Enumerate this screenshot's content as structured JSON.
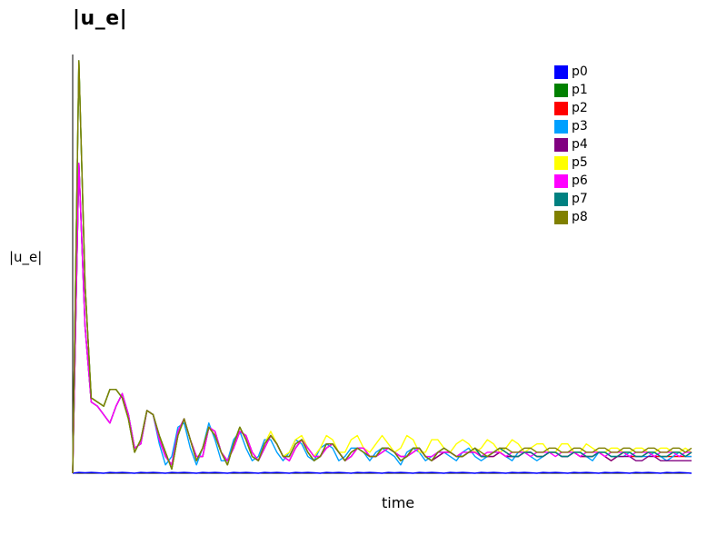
{
  "chart_data": {
    "type": "line",
    "title": "|u_e|",
    "xlabel": "time",
    "ylabel": "|u_e|",
    "xlim": [
      0,
      100
    ],
    "ylim": [
      0,
      1.0
    ],
    "grid": false,
    "legend_position": "top-right",
    "x": [
      0,
      1,
      2,
      3,
      4,
      5,
      6,
      7,
      8,
      9,
      10,
      11,
      12,
      13,
      14,
      15,
      16,
      17,
      18,
      19,
      20,
      21,
      22,
      23,
      24,
      25,
      26,
      27,
      28,
      29,
      30,
      31,
      32,
      33,
      34,
      35,
      36,
      37,
      38,
      39,
      40,
      41,
      42,
      43,
      44,
      45,
      46,
      47,
      48,
      49,
      50,
      51,
      52,
      53,
      54,
      55,
      56,
      57,
      58,
      59,
      60,
      61,
      62,
      63,
      64,
      65,
      66,
      67,
      68,
      69,
      70,
      71,
      72,
      73,
      74,
      75,
      76,
      77,
      78,
      79,
      80,
      81,
      82,
      83,
      84,
      85,
      86,
      87,
      88,
      89,
      90,
      91,
      92,
      93,
      94,
      95,
      96,
      97,
      98,
      99,
      100
    ],
    "series": [
      {
        "name": "p0",
        "color": "#0000ff",
        "values": [
          0.0,
          0.002,
          0.001,
          0.002,
          0.001,
          0.0,
          0.002,
          0.001,
          0.002,
          0.001,
          0.0,
          0.002,
          0.001,
          0.002,
          0.001,
          0.0,
          0.002,
          0.001,
          0.002,
          0.001,
          0.0,
          0.002,
          0.001,
          0.002,
          0.001,
          0.0,
          0.002,
          0.001,
          0.002,
          0.001,
          0.0,
          0.002,
          0.001,
          0.002,
          0.001,
          0.0,
          0.002,
          0.001,
          0.002,
          0.001,
          0.0,
          0.002,
          0.001,
          0.002,
          0.001,
          0.0,
          0.002,
          0.001,
          0.002,
          0.001,
          0.0,
          0.002,
          0.001,
          0.002,
          0.001,
          0.0,
          0.002,
          0.001,
          0.002,
          0.001,
          0.0,
          0.002,
          0.001,
          0.002,
          0.001,
          0.0,
          0.002,
          0.001,
          0.002,
          0.001,
          0.0,
          0.002,
          0.001,
          0.002,
          0.001,
          0.0,
          0.002,
          0.001,
          0.002,
          0.001,
          0.0,
          0.002,
          0.001,
          0.002,
          0.001,
          0.0,
          0.002,
          0.001,
          0.002,
          0.001,
          0.0,
          0.002,
          0.001,
          0.002,
          0.001,
          0.0,
          0.002,
          0.001,
          0.002,
          0.001,
          0.0
        ]
      },
      {
        "name": "p1",
        "color": "#008000",
        "values": [
          0.0,
          0.985,
          0.45,
          0.18,
          0.17,
          0.16,
          0.2,
          0.2,
          0.18,
          0.13,
          0.05,
          0.08,
          0.15,
          0.14,
          0.09,
          0.05,
          0.01,
          0.09,
          0.13,
          0.08,
          0.03,
          0.06,
          0.11,
          0.09,
          0.05,
          0.02,
          0.07,
          0.11,
          0.08,
          0.04,
          0.03,
          0.07,
          0.09,
          0.07,
          0.04,
          0.04,
          0.07,
          0.08,
          0.05,
          0.03,
          0.04,
          0.07,
          0.07,
          0.05,
          0.03,
          0.05,
          0.06,
          0.05,
          0.04,
          0.04,
          0.06,
          0.06,
          0.05,
          0.03,
          0.04,
          0.06,
          0.06,
          0.04,
          0.03,
          0.05,
          0.06,
          0.05,
          0.04,
          0.04,
          0.05,
          0.06,
          0.04,
          0.04,
          0.05,
          0.06,
          0.05,
          0.04,
          0.04,
          0.05,
          0.05,
          0.04,
          0.04,
          0.05,
          0.05,
          0.04,
          0.04,
          0.05,
          0.05,
          0.04,
          0.04,
          0.05,
          0.05,
          0.04,
          0.04,
          0.05,
          0.05,
          0.04,
          0.04,
          0.05,
          0.05,
          0.04,
          0.04,
          0.05,
          0.05,
          0.04,
          0.05
        ]
      },
      {
        "name": "p2",
        "color": "#ff0000",
        "values": [
          0.0,
          0.74,
          0.35,
          0.17,
          0.16,
          0.14,
          0.12,
          0.16,
          0.19,
          0.14,
          0.06,
          0.07,
          0.15,
          0.14,
          0.08,
          0.04,
          0.02,
          0.1,
          0.13,
          0.08,
          0.04,
          0.04,
          0.11,
          0.1,
          0.05,
          0.03,
          0.06,
          0.1,
          0.09,
          0.05,
          0.03,
          0.06,
          0.09,
          0.07,
          0.04,
          0.03,
          0.06,
          0.08,
          0.06,
          0.04,
          0.04,
          0.06,
          0.07,
          0.05,
          0.03,
          0.04,
          0.06,
          0.06,
          0.04,
          0.04,
          0.05,
          0.06,
          0.05,
          0.04,
          0.04,
          0.05,
          0.06,
          0.04,
          0.03,
          0.04,
          0.05,
          0.05,
          0.04,
          0.04,
          0.05,
          0.05,
          0.04,
          0.04,
          0.04,
          0.05,
          0.04,
          0.04,
          0.04,
          0.05,
          0.05,
          0.04,
          0.04,
          0.05,
          0.05,
          0.04,
          0.04,
          0.05,
          0.04,
          0.04,
          0.04,
          0.05,
          0.04,
          0.03,
          0.04,
          0.05,
          0.04,
          0.04,
          0.04,
          0.05,
          0.04,
          0.04,
          0.04,
          0.04,
          0.04,
          0.04,
          0.04
        ]
      },
      {
        "name": "p3",
        "color": "#00a0ff",
        "values": [
          0.0,
          0.74,
          0.35,
          0.17,
          0.16,
          0.14,
          0.12,
          0.16,
          0.19,
          0.14,
          0.06,
          0.07,
          0.15,
          0.14,
          0.07,
          0.02,
          0.04,
          0.11,
          0.12,
          0.06,
          0.02,
          0.06,
          0.12,
          0.08,
          0.03,
          0.03,
          0.08,
          0.1,
          0.06,
          0.03,
          0.04,
          0.08,
          0.08,
          0.05,
          0.03,
          0.05,
          0.08,
          0.07,
          0.04,
          0.03,
          0.06,
          0.07,
          0.06,
          0.03,
          0.04,
          0.06,
          0.06,
          0.05,
          0.03,
          0.05,
          0.06,
          0.05,
          0.04,
          0.02,
          0.05,
          0.06,
          0.05,
          0.03,
          0.04,
          0.05,
          0.05,
          0.04,
          0.03,
          0.05,
          0.06,
          0.04,
          0.03,
          0.04,
          0.05,
          0.05,
          0.04,
          0.03,
          0.05,
          0.05,
          0.04,
          0.03,
          0.04,
          0.05,
          0.05,
          0.04,
          0.04,
          0.05,
          0.05,
          0.04,
          0.03,
          0.05,
          0.05,
          0.04,
          0.04,
          0.04,
          0.05,
          0.04,
          0.04,
          0.04,
          0.05,
          0.04,
          0.03,
          0.04,
          0.05,
          0.04,
          0.04
        ]
      },
      {
        "name": "p4",
        "color": "#800080",
        "values": [
          0.0,
          0.74,
          0.35,
          0.17,
          0.16,
          0.14,
          0.12,
          0.16,
          0.19,
          0.14,
          0.06,
          0.07,
          0.15,
          0.14,
          0.08,
          0.04,
          0.02,
          0.1,
          0.13,
          0.08,
          0.04,
          0.04,
          0.11,
          0.1,
          0.05,
          0.03,
          0.06,
          0.1,
          0.09,
          0.05,
          0.03,
          0.06,
          0.09,
          0.07,
          0.04,
          0.03,
          0.06,
          0.08,
          0.06,
          0.04,
          0.04,
          0.06,
          0.07,
          0.05,
          0.03,
          0.04,
          0.06,
          0.06,
          0.04,
          0.04,
          0.05,
          0.06,
          0.05,
          0.04,
          0.04,
          0.05,
          0.06,
          0.04,
          0.03,
          0.04,
          0.05,
          0.05,
          0.04,
          0.04,
          0.05,
          0.05,
          0.04,
          0.04,
          0.04,
          0.05,
          0.04,
          0.04,
          0.04,
          0.05,
          0.05,
          0.04,
          0.04,
          0.05,
          0.05,
          0.04,
          0.04,
          0.05,
          0.04,
          0.04,
          0.04,
          0.05,
          0.04,
          0.03,
          0.04,
          0.04,
          0.04,
          0.03,
          0.03,
          0.04,
          0.04,
          0.03,
          0.03,
          0.03,
          0.03,
          0.03,
          0.03
        ]
      },
      {
        "name": "p5",
        "color": "#ffff00",
        "values": [
          0.0,
          0.985,
          0.45,
          0.18,
          0.17,
          0.16,
          0.2,
          0.2,
          0.18,
          0.13,
          0.05,
          0.08,
          0.15,
          0.14,
          0.09,
          0.05,
          0.01,
          0.09,
          0.13,
          0.08,
          0.03,
          0.06,
          0.11,
          0.09,
          0.05,
          0.02,
          0.07,
          0.11,
          0.08,
          0.04,
          0.03,
          0.07,
          0.1,
          0.07,
          0.04,
          0.05,
          0.08,
          0.09,
          0.06,
          0.04,
          0.06,
          0.09,
          0.08,
          0.05,
          0.05,
          0.08,
          0.09,
          0.06,
          0.05,
          0.07,
          0.09,
          0.07,
          0.05,
          0.06,
          0.09,
          0.08,
          0.05,
          0.05,
          0.08,
          0.08,
          0.06,
          0.05,
          0.07,
          0.08,
          0.07,
          0.05,
          0.06,
          0.08,
          0.07,
          0.05,
          0.06,
          0.08,
          0.07,
          0.05,
          0.06,
          0.07,
          0.07,
          0.05,
          0.05,
          0.07,
          0.07,
          0.05,
          0.05,
          0.07,
          0.06,
          0.05,
          0.05,
          0.06,
          0.06,
          0.05,
          0.05,
          0.06,
          0.06,
          0.05,
          0.05,
          0.06,
          0.06,
          0.05,
          0.05,
          0.06,
          0.05
        ]
      },
      {
        "name": "p6",
        "color": "#ff00ff",
        "values": [
          0.0,
          0.74,
          0.35,
          0.17,
          0.16,
          0.14,
          0.12,
          0.16,
          0.19,
          0.14,
          0.06,
          0.07,
          0.15,
          0.14,
          0.08,
          0.04,
          0.02,
          0.1,
          0.13,
          0.08,
          0.04,
          0.04,
          0.11,
          0.1,
          0.05,
          0.03,
          0.06,
          0.1,
          0.09,
          0.05,
          0.03,
          0.06,
          0.09,
          0.07,
          0.04,
          0.03,
          0.06,
          0.08,
          0.06,
          0.04,
          0.04,
          0.06,
          0.07,
          0.05,
          0.03,
          0.04,
          0.06,
          0.06,
          0.04,
          0.04,
          0.05,
          0.06,
          0.05,
          0.04,
          0.04,
          0.05,
          0.06,
          0.04,
          0.04,
          0.05,
          0.05,
          0.05,
          0.04,
          0.05,
          0.05,
          0.05,
          0.04,
          0.05,
          0.05,
          0.05,
          0.04,
          0.05,
          0.05,
          0.05,
          0.04,
          0.05,
          0.05,
          0.05,
          0.04,
          0.05,
          0.05,
          0.05,
          0.04,
          0.05,
          0.05,
          0.05,
          0.04,
          0.05,
          0.05,
          0.05,
          0.04,
          0.05,
          0.05,
          0.05,
          0.04,
          0.05,
          0.05,
          0.05,
          0.04,
          0.05,
          0.05
        ]
      },
      {
        "name": "p7",
        "color": "#008080",
        "values": [
          0.0,
          0.985,
          0.45,
          0.18,
          0.17,
          0.16,
          0.2,
          0.2,
          0.18,
          0.13,
          0.05,
          0.08,
          0.15,
          0.14,
          0.09,
          0.05,
          0.01,
          0.09,
          0.13,
          0.08,
          0.03,
          0.06,
          0.11,
          0.09,
          0.05,
          0.02,
          0.07,
          0.11,
          0.08,
          0.04,
          0.03,
          0.07,
          0.09,
          0.07,
          0.04,
          0.04,
          0.07,
          0.08,
          0.05,
          0.03,
          0.04,
          0.07,
          0.07,
          0.05,
          0.03,
          0.05,
          0.06,
          0.05,
          0.04,
          0.04,
          0.06,
          0.06,
          0.05,
          0.03,
          0.04,
          0.06,
          0.06,
          0.04,
          0.03,
          0.05,
          0.06,
          0.05,
          0.04,
          0.04,
          0.05,
          0.06,
          0.04,
          0.04,
          0.05,
          0.06,
          0.05,
          0.04,
          0.04,
          0.05,
          0.05,
          0.04,
          0.04,
          0.05,
          0.05,
          0.04,
          0.04,
          0.05,
          0.05,
          0.04,
          0.04,
          0.05,
          0.05,
          0.04,
          0.04,
          0.05,
          0.05,
          0.04,
          0.04,
          0.05,
          0.05,
          0.04,
          0.04,
          0.05,
          0.05,
          0.04,
          0.05
        ]
      },
      {
        "name": "p8",
        "color": "#808000",
        "values": [
          0.0,
          0.985,
          0.45,
          0.18,
          0.17,
          0.16,
          0.2,
          0.2,
          0.18,
          0.13,
          0.05,
          0.08,
          0.15,
          0.14,
          0.09,
          0.05,
          0.01,
          0.09,
          0.13,
          0.08,
          0.03,
          0.06,
          0.11,
          0.09,
          0.05,
          0.02,
          0.07,
          0.11,
          0.08,
          0.04,
          0.03,
          0.07,
          0.09,
          0.07,
          0.04,
          0.04,
          0.07,
          0.08,
          0.05,
          0.03,
          0.04,
          0.07,
          0.07,
          0.05,
          0.03,
          0.05,
          0.06,
          0.05,
          0.04,
          0.04,
          0.06,
          0.06,
          0.05,
          0.03,
          0.04,
          0.06,
          0.06,
          0.04,
          0.03,
          0.05,
          0.06,
          0.05,
          0.04,
          0.04,
          0.05,
          0.06,
          0.05,
          0.04,
          0.05,
          0.06,
          0.06,
          0.05,
          0.05,
          0.06,
          0.06,
          0.05,
          0.05,
          0.06,
          0.06,
          0.05,
          0.05,
          0.06,
          0.06,
          0.05,
          0.05,
          0.06,
          0.06,
          0.05,
          0.05,
          0.06,
          0.06,
          0.05,
          0.05,
          0.06,
          0.06,
          0.05,
          0.05,
          0.06,
          0.06,
          0.05,
          0.06
        ]
      }
    ]
  }
}
